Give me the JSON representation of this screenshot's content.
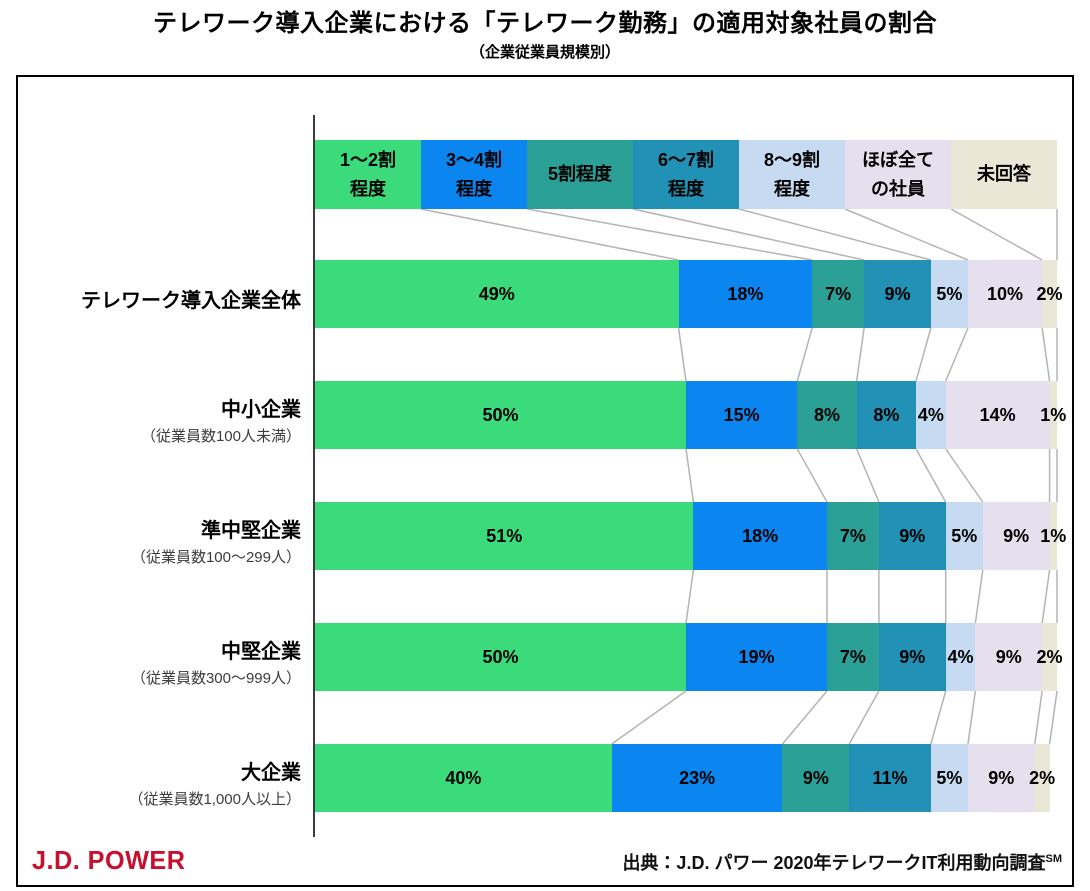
{
  "title": "テレワーク導入企業における「テレワーク勤務」の適用対象社員の割合",
  "subtitle": "（企業従業員規模別）",
  "footer": {
    "logo_text": "J.D. POWER",
    "source_text": "出典：J.D. パワー 2020年テレワークIT利用動向調査",
    "source_superscript": "SM"
  },
  "chart_data": {
    "type": "bar",
    "orientation": "horizontal",
    "stacked": true,
    "unit": "%",
    "xlim": [
      0,
      100
    ],
    "grid": false,
    "legend_position": "top",
    "connector_lines": true,
    "connector_color": "#b4b4b4",
    "categories": [
      {
        "label": "テレワーク導入企業全体",
        "sublabel": ""
      },
      {
        "label": "中小企業",
        "sublabel": "（従業員数100人未満）"
      },
      {
        "label": "準中堅企業",
        "sublabel": "（従業員数100～299人）"
      },
      {
        "label": "中堅企業",
        "sublabel": "（従業員数300～999人）"
      },
      {
        "label": "大企業",
        "sublabel": "（従業員数1,000人以上）"
      }
    ],
    "series": [
      {
        "name": "1～2割程度",
        "legend_lines": [
          "1～2割",
          "程度"
        ],
        "color": "#3bdb7c",
        "values": [
          49,
          50,
          51,
          50,
          40
        ]
      },
      {
        "name": "3～4割程度",
        "legend_lines": [
          "3～4割",
          "程度"
        ],
        "color": "#0b86f0",
        "values": [
          18,
          15,
          18,
          19,
          23
        ]
      },
      {
        "name": "5割程度",
        "legend_lines": [
          "5割程度"
        ],
        "color": "#2ba096",
        "values": [
          7,
          8,
          7,
          7,
          9
        ]
      },
      {
        "name": "6～7割程度",
        "legend_lines": [
          "6～7割",
          "程度"
        ],
        "color": "#2191b5",
        "values": [
          9,
          8,
          9,
          9,
          11
        ]
      },
      {
        "name": "8～9割程度",
        "legend_lines": [
          "8～9割",
          "程度"
        ],
        "color": "#c6dbf1",
        "values": [
          5,
          4,
          5,
          4,
          5
        ]
      },
      {
        "name": "ほぼ全ての社員",
        "legend_lines": [
          "ほぼ全て",
          "の社員"
        ],
        "color": "#e5dfee",
        "values": [
          10,
          14,
          9,
          9,
          9
        ]
      },
      {
        "name": "未回答",
        "legend_lines": [
          "未回答"
        ],
        "color": "#eae7d6",
        "values": [
          2,
          1,
          1,
          2,
          2
        ]
      }
    ]
  }
}
